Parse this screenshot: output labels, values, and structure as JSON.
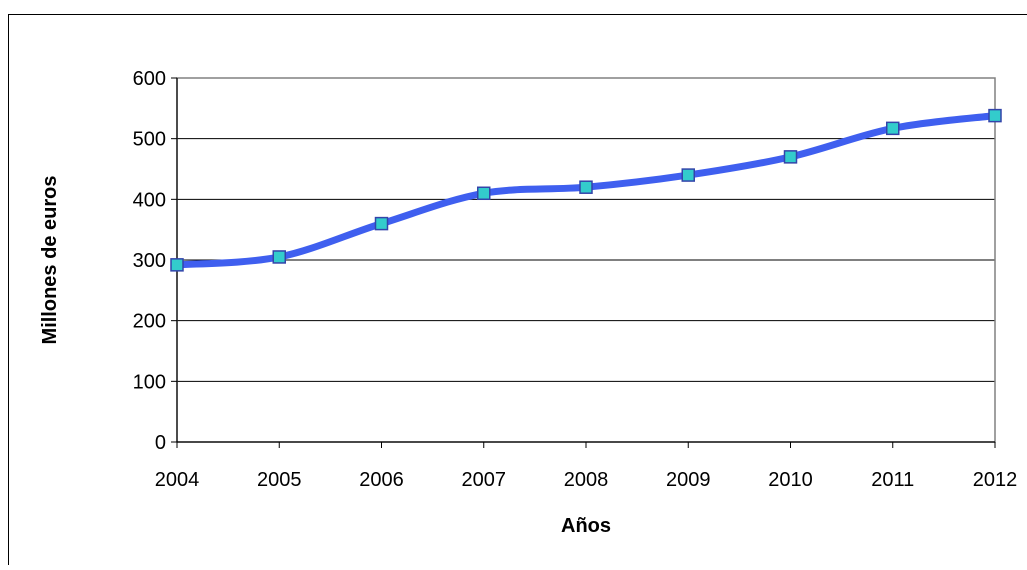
{
  "chart_data": {
    "type": "line",
    "title": "",
    "xlabel": "Años",
    "ylabel": "Millones de euros",
    "x": [
      "2004",
      "2005",
      "2006",
      "2007",
      "2008",
      "2009",
      "2010",
      "2011",
      "2012"
    ],
    "series": [
      {
        "name": "",
        "values": [
          292,
          305,
          360,
          410,
          420,
          440,
          470,
          517,
          538
        ]
      }
    ],
    "y_ticks": [
      "0",
      "100",
      "200",
      "300",
      "400",
      "500",
      "600"
    ],
    "ylim": [
      0,
      600
    ],
    "grid": "horizontal",
    "legend": "none",
    "colors": {
      "line": "#3F5FEF",
      "marker_fill": "#33CCCC",
      "marker_edge": "#3344AA",
      "plot_border": "#808080",
      "gridline": "#000000"
    }
  }
}
